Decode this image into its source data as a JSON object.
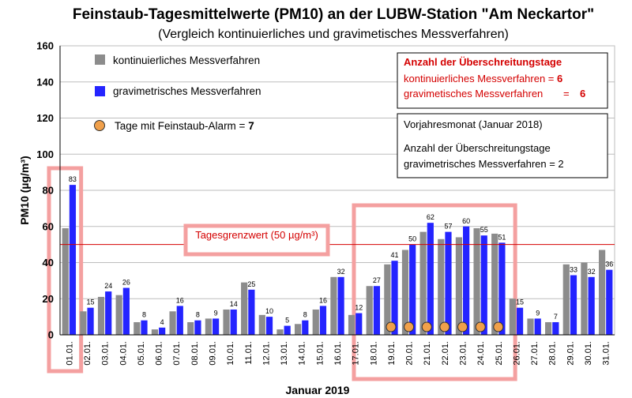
{
  "chart_data": {
    "type": "bar",
    "title": "Feinstaub-Tagesmittelwerte (PM10) an der LUBW-Station \"Am Neckartor\"",
    "subtitle": "(Vergleich kontinuierliches und gravimetisches Messverfahren)",
    "xlabel": "Januar 2019",
    "ylabel": "PM10 (µg/m³)",
    "ylim": [
      0,
      160
    ],
    "yticks": [
      0,
      20,
      40,
      60,
      80,
      100,
      120,
      140,
      160
    ],
    "categories": [
      "01.01.",
      "02.01.",
      "03.01.",
      "04.01.",
      "05.01.",
      "06.01.",
      "07.01.",
      "08.01.",
      "09.01.",
      "10.01.",
      "11.01.",
      "12.01.",
      "13.01.",
      "14.01.",
      "15.01.",
      "16.01.",
      "17.01.",
      "18.01.",
      "19.01.",
      "20.01.",
      "21.01.",
      "22.01.",
      "23.01.",
      "24.01.",
      "25.01.",
      "26.01.",
      "27.01.",
      "28.01.",
      "29.01.",
      "30.01.",
      "31.01."
    ],
    "series": [
      {
        "name": "kontinuierliches Messverfahren",
        "color": "#8c8c8c",
        "values": [
          59,
          13,
          21,
          22,
          7,
          3,
          13,
          7,
          9,
          14,
          29,
          11,
          3,
          6,
          14,
          32,
          11,
          27,
          39,
          47,
          57,
          53,
          54,
          59,
          56,
          20,
          9,
          7,
          39,
          40,
          47
        ]
      },
      {
        "name": "gravimetrisches Messverfahren",
        "color": "#2424ff",
        "values": [
          83,
          15,
          24,
          26,
          8,
          4,
          16,
          8,
          9,
          14,
          25,
          10,
          5,
          8,
          16,
          32,
          12,
          27,
          41,
          50,
          62,
          57,
          60,
          55,
          51,
          15,
          9,
          7,
          33,
          32,
          36
        ]
      }
    ],
    "alarm_series": {
      "name": "Tage mit Feinstaub-Alarm",
      "count": "7",
      "color": "#f0a04b",
      "days": [
        "19.01.",
        "20.01.",
        "21.01.",
        "22.01.",
        "23.01.",
        "24.01.",
        "25.01."
      ]
    },
    "limit": {
      "value": 50,
      "label": "Tagesgrenzwert (50 µg/m³)",
      "color": "#d40000"
    },
    "highlights": [
      {
        "from": "01.01.",
        "to": "01.01."
      },
      {
        "from": "18.01.",
        "to": "25.01."
      }
    ]
  },
  "legend": {
    "kont_label": "kontinuierliches Messverfahren",
    "grav_label": "gravimetrisches Messverfahren",
    "alarm_label": "Tage mit Feinstaub-Alarm = ",
    "alarm_count": "7"
  },
  "box_exceed": {
    "title": "Anzahl der Überschreitungstage",
    "line1_label": "kontinuierliches Messverfahren = ",
    "line1_value": "6",
    "line2_label": "gravimetisches Messverfahren",
    "line2_eq": "=",
    "line2_value": "6"
  },
  "box_prev": {
    "line1": "Vorjahresmonat (Januar 2018)",
    "line2": "Anzahl der Überschreitungstage",
    "line3": "gravimetrisches Messverfahren = 2"
  },
  "colors": {
    "highlight": "#f4a0a0",
    "box_border": "#000000"
  }
}
